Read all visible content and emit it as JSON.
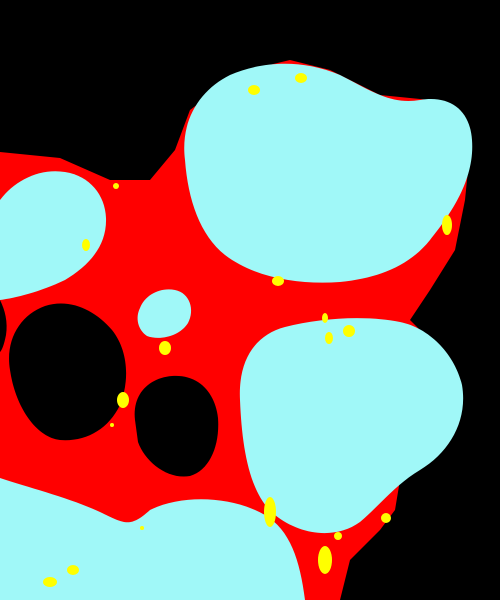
{
  "colors": {
    "background": "#000000",
    "tissue": "#ff0000",
    "cell": "#a0f8f8",
    "lumen": "#000000",
    "marker": "#ffff00"
  },
  "regions": {
    "background": "background-region",
    "tissue": "tissue-region",
    "cells": "cell-regions",
    "lumens": "lumen-regions",
    "markers": "marker-spots"
  }
}
